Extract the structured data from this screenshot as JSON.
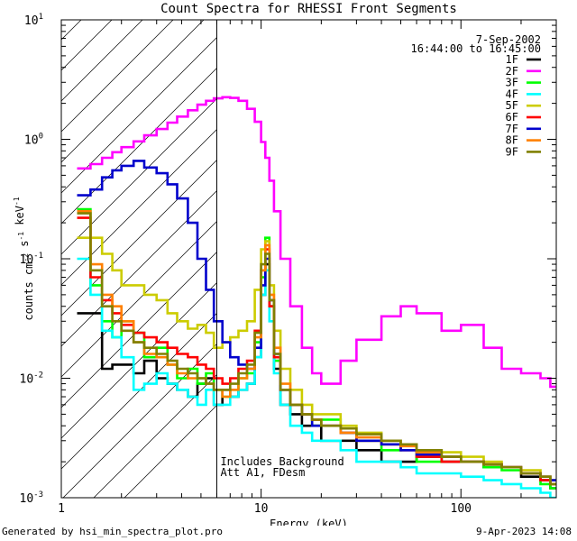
{
  "chart_data": {
    "type": "line",
    "title": "Count Spectra for RHESSI Front Segments",
    "xlabel": "Energy (keV)",
    "ylabel": "counts cm^-2 s^-1 keV^-1",
    "xscale": "log",
    "yscale": "log",
    "xlim": [
      1,
      300
    ],
    "ylim": [
      0.001,
      10
    ],
    "x_tick_labels": [
      "1",
      "10",
      "100"
    ],
    "y_tick_labels": [
      "10^-3",
      "10^-2",
      "10^-1",
      "10^0",
      "10^1"
    ],
    "date": "7-Sep-2002",
    "time_range": "16:44:00 to 16:45:00",
    "shaded_region_keV": [
      1,
      6
    ],
    "note_line1": "Includes Background",
    "note_line2": "Att A1, FDesm",
    "legend_position": "top-right",
    "series": [
      {
        "name": "1F",
        "color": "#000000",
        "x": [
          1.2,
          1.4,
          1.6,
          1.8,
          2.0,
          2.3,
          2.6,
          3.0,
          3.4,
          3.8,
          4.3,
          4.8,
          5.3,
          5.8,
          6.4,
          7.0,
          7.7,
          8.5,
          9.3,
          10.0,
          10.5,
          11.0,
          11.6,
          12.5,
          14,
          16,
          18,
          20,
          25,
          30,
          40,
          50,
          60,
          80,
          100,
          130,
          160,
          200,
          250,
          280
        ],
        "y": [
          0.035,
          0.035,
          0.012,
          0.013,
          0.013,
          0.011,
          0.014,
          0.01,
          0.009,
          0.008,
          0.007,
          0.009,
          0.01,
          0.006,
          0.008,
          0.007,
          0.008,
          0.009,
          0.015,
          0.05,
          0.09,
          0.04,
          0.012,
          0.006,
          0.005,
          0.004,
          0.004,
          0.003,
          0.003,
          0.0025,
          0.002,
          0.002,
          0.0022,
          0.002,
          0.002,
          0.0018,
          0.0018,
          0.0015,
          0.0014,
          0.0012
        ]
      },
      {
        "name": "2F",
        "color": "#ff00ff",
        "x": [
          1.2,
          1.4,
          1.6,
          1.8,
          2.0,
          2.3,
          2.6,
          3.0,
          3.4,
          3.8,
          4.3,
          4.8,
          5.3,
          5.8,
          6.4,
          7.0,
          7.7,
          8.5,
          9.3,
          10.0,
          10.5,
          11.0,
          11.6,
          12.5,
          14,
          16,
          18,
          20,
          25,
          30,
          40,
          50,
          60,
          80,
          100,
          130,
          160,
          200,
          250,
          280
        ],
        "y": [
          0.57,
          0.62,
          0.7,
          0.78,
          0.86,
          0.96,
          1.08,
          1.22,
          1.38,
          1.55,
          1.75,
          1.95,
          2.1,
          2.2,
          2.25,
          2.22,
          2.1,
          1.8,
          1.4,
          0.95,
          0.7,
          0.45,
          0.25,
          0.1,
          0.04,
          0.018,
          0.011,
          0.009,
          0.014,
          0.021,
          0.033,
          0.04,
          0.035,
          0.025,
          0.028,
          0.018,
          0.012,
          0.011,
          0.01,
          0.0085
        ]
      },
      {
        "name": "3F",
        "color": "#00ff00",
        "x": [
          1.2,
          1.4,
          1.6,
          1.8,
          2.0,
          2.3,
          2.6,
          3.0,
          3.4,
          3.8,
          4.3,
          4.8,
          5.3,
          5.8,
          6.4,
          7.0,
          7.7,
          8.5,
          9.3,
          10.0,
          10.5,
          11.0,
          11.6,
          12.5,
          14,
          16,
          18,
          20,
          25,
          30,
          40,
          50,
          60,
          80,
          100,
          130,
          160,
          200,
          250,
          280
        ],
        "y": [
          0.26,
          0.06,
          0.03,
          0.022,
          0.03,
          0.024,
          0.015,
          0.018,
          0.013,
          0.01,
          0.012,
          0.009,
          0.011,
          0.008,
          0.007,
          0.008,
          0.01,
          0.011,
          0.02,
          0.07,
          0.15,
          0.04,
          0.014,
          0.008,
          0.006,
          0.005,
          0.004,
          0.0045,
          0.0035,
          0.003,
          0.0025,
          0.0028,
          0.002,
          0.0022,
          0.002,
          0.0018,
          0.0017,
          0.0016,
          0.0013,
          0.0012
        ]
      },
      {
        "name": "4F",
        "color": "#00ffff",
        "x": [
          1.2,
          1.4,
          1.6,
          1.8,
          2.0,
          2.3,
          2.6,
          3.0,
          3.4,
          3.8,
          4.3,
          4.8,
          5.3,
          5.8,
          6.4,
          7.0,
          7.7,
          8.5,
          9.3,
          10.0,
          10.5,
          11.0,
          11.6,
          12.5,
          14,
          16,
          18,
          20,
          25,
          30,
          40,
          50,
          60,
          80,
          100,
          130,
          160,
          200,
          250,
          280
        ],
        "y": [
          0.1,
          0.05,
          0.025,
          0.022,
          0.015,
          0.008,
          0.009,
          0.011,
          0.009,
          0.008,
          0.007,
          0.006,
          0.008,
          0.006,
          0.006,
          0.007,
          0.008,
          0.009,
          0.015,
          0.05,
          0.08,
          0.03,
          0.011,
          0.006,
          0.004,
          0.0035,
          0.003,
          0.003,
          0.0025,
          0.002,
          0.002,
          0.0018,
          0.0016,
          0.0016,
          0.0015,
          0.0014,
          0.0013,
          0.0012,
          0.0011,
          0.001
        ]
      },
      {
        "name": "5F",
        "color": "#cccc00",
        "x": [
          1.2,
          1.4,
          1.6,
          1.8,
          2.0,
          2.3,
          2.6,
          3.0,
          3.4,
          3.8,
          4.3,
          4.8,
          5.3,
          5.8,
          6.4,
          7.0,
          7.7,
          8.5,
          9.3,
          10.0,
          10.5,
          11.0,
          11.6,
          12.5,
          14,
          16,
          18,
          20,
          25,
          30,
          40,
          50,
          60,
          80,
          100,
          130,
          160,
          200,
          250,
          280
        ],
        "y": [
          0.15,
          0.15,
          0.11,
          0.08,
          0.06,
          0.06,
          0.05,
          0.045,
          0.035,
          0.03,
          0.026,
          0.028,
          0.024,
          0.018,
          0.02,
          0.022,
          0.025,
          0.03,
          0.055,
          0.12,
          0.14,
          0.06,
          0.025,
          0.012,
          0.008,
          0.006,
          0.005,
          0.005,
          0.004,
          0.0035,
          0.003,
          0.0028,
          0.0025,
          0.0024,
          0.0022,
          0.002,
          0.0018,
          0.0017,
          0.0015,
          0.0014
        ]
      },
      {
        "name": "6F",
        "color": "#ff0000",
        "x": [
          1.2,
          1.4,
          1.6,
          1.8,
          2.0,
          2.3,
          2.6,
          3.0,
          3.4,
          3.8,
          4.3,
          4.8,
          5.3,
          5.8,
          6.4,
          7.0,
          7.7,
          8.5,
          9.3,
          10.0,
          10.5,
          11.0,
          11.6,
          12.5,
          14,
          16,
          18,
          20,
          25,
          30,
          40,
          50,
          60,
          80,
          100,
          130,
          160,
          200,
          250,
          280
        ],
        "y": [
          0.22,
          0.07,
          0.045,
          0.035,
          0.028,
          0.024,
          0.022,
          0.02,
          0.018,
          0.016,
          0.015,
          0.013,
          0.012,
          0.01,
          0.009,
          0.01,
          0.012,
          0.014,
          0.025,
          0.08,
          0.12,
          0.04,
          0.015,
          0.008,
          0.006,
          0.005,
          0.0045,
          0.004,
          0.0035,
          0.003,
          0.0028,
          0.0025,
          0.0022,
          0.002,
          0.002,
          0.0019,
          0.0018,
          0.0016,
          0.0014,
          0.0013
        ]
      },
      {
        "name": "7F",
        "color": "#0000cc",
        "x": [
          1.2,
          1.4,
          1.6,
          1.8,
          2.0,
          2.3,
          2.6,
          3.0,
          3.4,
          3.8,
          4.3,
          4.8,
          5.3,
          5.8,
          6.4,
          7.0,
          7.7,
          8.5,
          9.3,
          10.0,
          10.5,
          11.0,
          11.6,
          12.5,
          14,
          16,
          18,
          20,
          25,
          30,
          40,
          50,
          60,
          80,
          100,
          130,
          160,
          200,
          250,
          280
        ],
        "y": [
          0.34,
          0.38,
          0.48,
          0.55,
          0.6,
          0.66,
          0.58,
          0.52,
          0.42,
          0.32,
          0.2,
          0.1,
          0.055,
          0.03,
          0.02,
          0.015,
          0.013,
          0.012,
          0.018,
          0.06,
          0.1,
          0.045,
          0.016,
          0.008,
          0.006,
          0.005,
          0.004,
          0.004,
          0.0035,
          0.003,
          0.0028,
          0.0025,
          0.0023,
          0.0022,
          0.002,
          0.0019,
          0.0018,
          0.0016,
          0.0015,
          0.0014
        ]
      },
      {
        "name": "8F",
        "color": "#ff8000",
        "x": [
          1.2,
          1.4,
          1.6,
          1.8,
          2.0,
          2.3,
          2.6,
          3.0,
          3.4,
          3.8,
          4.3,
          4.8,
          5.3,
          5.8,
          6.4,
          7.0,
          7.7,
          8.5,
          9.3,
          10.0,
          10.5,
          11.0,
          11.6,
          12.5,
          14,
          16,
          18,
          20,
          25,
          30,
          40,
          50,
          60,
          80,
          100,
          130,
          160,
          200,
          250,
          280
        ],
        "y": [
          0.25,
          0.09,
          0.05,
          0.04,
          0.03,
          0.02,
          0.016,
          0.015,
          0.013,
          0.011,
          0.01,
          0.01,
          0.009,
          0.008,
          0.007,
          0.008,
          0.01,
          0.012,
          0.022,
          0.08,
          0.13,
          0.05,
          0.018,
          0.009,
          0.006,
          0.005,
          0.0045,
          0.004,
          0.0035,
          0.0032,
          0.003,
          0.0027,
          0.0024,
          0.0022,
          0.002,
          0.0019,
          0.0018,
          0.0016,
          0.0015,
          0.0013
        ]
      },
      {
        "name": "9F",
        "color": "#808000",
        "x": [
          1.2,
          1.4,
          1.6,
          1.8,
          2.0,
          2.3,
          2.6,
          3.0,
          3.4,
          3.8,
          4.3,
          4.8,
          5.3,
          5.8,
          6.4,
          7.0,
          7.7,
          8.5,
          9.3,
          10.0,
          10.5,
          11.0,
          11.6,
          12.5,
          14,
          16,
          18,
          20,
          25,
          30,
          40,
          50,
          60,
          80,
          100,
          130,
          160,
          200,
          250,
          280
        ],
        "y": [
          0.24,
          0.08,
          0.04,
          0.03,
          0.025,
          0.02,
          0.018,
          0.016,
          0.014,
          0.012,
          0.011,
          0.01,
          0.009,
          0.008,
          0.008,
          0.009,
          0.011,
          0.013,
          0.024,
          0.09,
          0.11,
          0.045,
          0.016,
          0.008,
          0.006,
          0.005,
          0.0045,
          0.004,
          0.0038,
          0.0034,
          0.003,
          0.0028,
          0.0025,
          0.0022,
          0.002,
          0.0019,
          0.0018,
          0.0016,
          0.0015,
          0.0013
        ]
      }
    ]
  },
  "footer": {
    "left": "Generated by hsi_min_spectra_plot.pro",
    "right": "9-Apr-2023 14:08"
  }
}
